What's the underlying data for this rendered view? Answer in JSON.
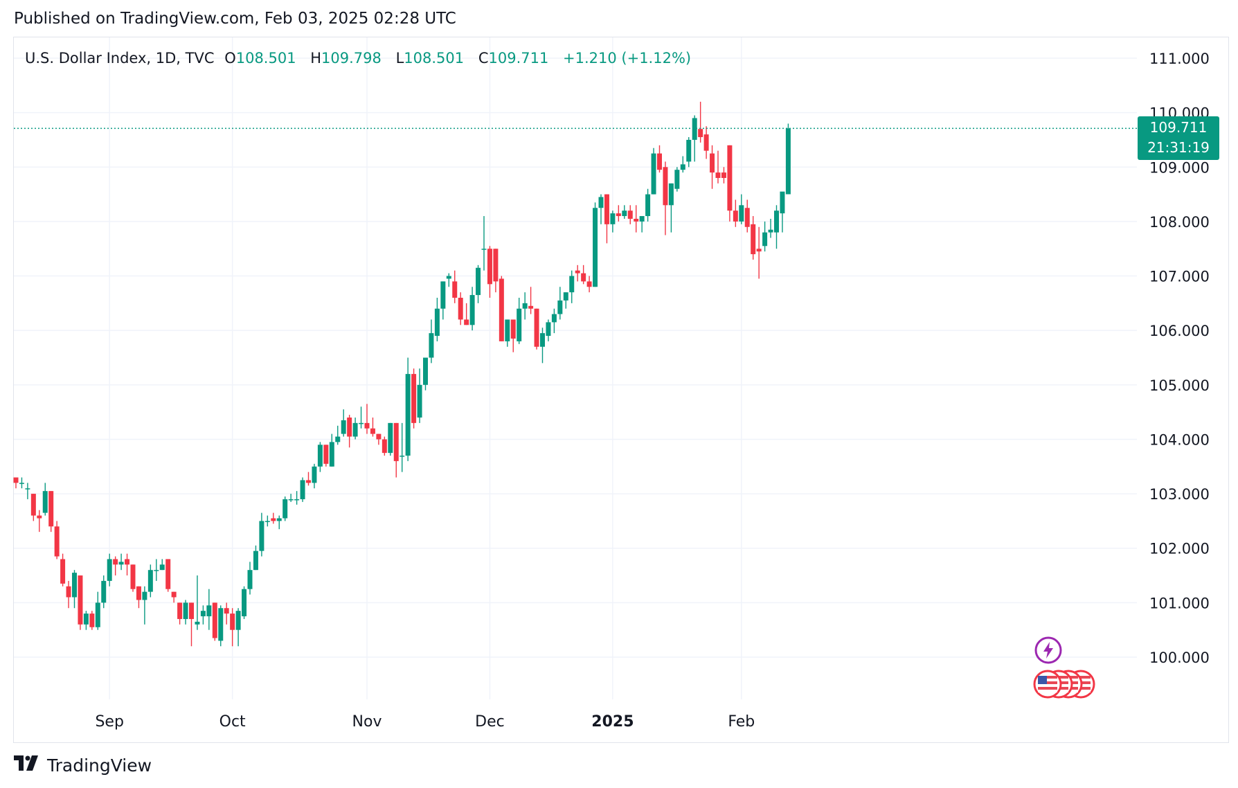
{
  "header": {
    "published": "Published on TradingView.com, Feb 03, 2025 02:28 UTC"
  },
  "legend": {
    "symbol": "U.S. Dollar Index, 1D, TVC",
    "open_label": "O",
    "open": "108.501",
    "high_label": "H",
    "high": "109.798",
    "low_label": "L",
    "low": "108.501",
    "close_label": "C",
    "close": "109.711",
    "change": "+1.210 (+1.12%)"
  },
  "price_tag": {
    "price": "109.711",
    "countdown": "21:31:19"
  },
  "footer": {
    "brand": "TradingView"
  },
  "colors": {
    "up": "#089981",
    "down": "#f23645",
    "grid": "#f0f3fa",
    "text": "#131722",
    "event": "#9c27b0"
  },
  "chart_data": {
    "type": "candlestick",
    "title": "U.S. Dollar Index, 1D, TVC",
    "ylim": [
      99.2,
      111.4
    ],
    "y_ticks": [
      "111.000",
      "110.000",
      "109.000",
      "108.000",
      "107.000",
      "106.000",
      "105.000",
      "104.000",
      "103.000",
      "102.000",
      "101.000",
      "100.000"
    ],
    "y_tick_values": [
      111,
      110,
      109,
      108,
      107,
      106,
      105,
      104,
      103,
      102,
      101,
      100
    ],
    "x_ticks": [
      {
        "label": "Sep",
        "index": 16,
        "bold": false
      },
      {
        "label": "Oct",
        "index": 37,
        "bold": false
      },
      {
        "label": "Nov",
        "index": 60,
        "bold": false
      },
      {
        "label": "Dec",
        "index": 81,
        "bold": false
      },
      {
        "label": "2025",
        "index": 102,
        "bold": true
      },
      {
        "label": "Feb",
        "index": 124,
        "bold": false
      }
    ],
    "last_price": 109.711,
    "candles": [
      [
        103.3,
        103.3,
        103.1,
        103.2
      ],
      [
        103.2,
        103.3,
        103.1,
        103.2
      ],
      [
        103.1,
        103.2,
        102.9,
        103.1
      ],
      [
        103.0,
        103.0,
        102.5,
        102.6
      ],
      [
        102.6,
        102.7,
        102.3,
        102.55
      ],
      [
        102.65,
        103.2,
        102.6,
        103.05
      ],
      [
        103.05,
        103.05,
        102.3,
        102.4
      ],
      [
        102.4,
        102.5,
        101.8,
        101.85
      ],
      [
        101.8,
        101.9,
        101.3,
        101.35
      ],
      [
        101.3,
        101.4,
        100.9,
        101.1
      ],
      [
        101.1,
        101.6,
        100.9,
        101.55
      ],
      [
        101.5,
        101.5,
        100.5,
        100.6
      ],
      [
        100.6,
        100.85,
        100.5,
        100.8
      ],
      [
        100.8,
        100.85,
        100.5,
        100.55
      ],
      [
        100.55,
        101.2,
        100.5,
        101.0
      ],
      [
        101.0,
        101.5,
        100.9,
        101.4
      ],
      [
        101.4,
        101.9,
        101.3,
        101.8
      ],
      [
        101.8,
        101.85,
        101.5,
        101.7
      ],
      [
        101.7,
        101.9,
        101.6,
        101.75
      ],
      [
        101.8,
        101.9,
        101.5,
        101.7
      ],
      [
        101.7,
        101.7,
        101.2,
        101.25
      ],
      [
        101.3,
        101.3,
        100.9,
        101.05
      ],
      [
        101.05,
        101.3,
        100.6,
        101.2
      ],
      [
        101.2,
        101.7,
        101.1,
        101.6
      ],
      [
        101.6,
        101.8,
        101.4,
        101.6
      ],
      [
        101.6,
        101.8,
        101.6,
        101.7
      ],
      [
        101.8,
        101.8,
        101.2,
        101.25
      ],
      [
        101.2,
        101.2,
        101.0,
        101.1
      ],
      [
        101.0,
        101.0,
        100.6,
        100.7
      ],
      [
        100.7,
        101.05,
        100.6,
        101.0
      ],
      [
        101.0,
        101.0,
        100.2,
        100.7
      ],
      [
        100.6,
        101.5,
        100.5,
        100.65
      ],
      [
        100.75,
        100.95,
        100.6,
        100.85
      ],
      [
        100.75,
        101.25,
        100.5,
        100.95
      ],
      [
        101.0,
        101.0,
        100.3,
        100.35
      ],
      [
        100.3,
        100.95,
        100.2,
        100.9
      ],
      [
        100.9,
        101.0,
        100.6,
        100.8
      ],
      [
        100.8,
        100.9,
        100.2,
        100.5
      ],
      [
        100.5,
        100.9,
        100.2,
        100.85
      ],
      [
        100.75,
        101.3,
        100.7,
        101.25
      ],
      [
        101.25,
        101.75,
        101.15,
        101.6
      ],
      [
        101.6,
        102.05,
        101.6,
        101.95
      ],
      [
        101.95,
        102.65,
        101.85,
        102.5
      ],
      [
        102.5,
        102.6,
        102.4,
        102.5
      ],
      [
        102.55,
        102.65,
        102.45,
        102.5
      ],
      [
        102.5,
        102.6,
        102.35,
        102.55
      ],
      [
        102.55,
        102.95,
        102.5,
        102.9
      ],
      [
        102.9,
        103.0,
        102.85,
        102.9
      ],
      [
        102.9,
        103.05,
        102.8,
        102.9
      ],
      [
        102.9,
        103.3,
        102.85,
        103.25
      ],
      [
        103.25,
        103.4,
        103.15,
        103.2
      ],
      [
        103.2,
        103.55,
        103.1,
        103.5
      ],
      [
        103.5,
        103.95,
        103.4,
        103.9
      ],
      [
        103.9,
        103.9,
        103.5,
        103.55
      ],
      [
        103.5,
        104.1,
        103.5,
        103.95
      ],
      [
        103.95,
        104.25,
        103.9,
        104.05
      ],
      [
        104.1,
        104.55,
        104.05,
        104.35
      ],
      [
        104.4,
        104.45,
        103.85,
        104.05
      ],
      [
        104.05,
        104.4,
        104.0,
        104.3
      ],
      [
        104.3,
        104.6,
        104.2,
        104.3
      ],
      [
        104.3,
        104.65,
        104.1,
        104.2
      ],
      [
        104.2,
        104.4,
        104.05,
        104.1
      ],
      [
        104.1,
        104.1,
        103.9,
        104.0
      ],
      [
        104.0,
        104.05,
        103.7,
        103.75
      ],
      [
        103.75,
        104.3,
        103.7,
        104.3
      ],
      [
        104.3,
        104.3,
        103.3,
        103.6
      ],
      [
        103.7,
        104.3,
        103.4,
        103.7
      ],
      [
        103.7,
        105.5,
        103.6,
        105.2
      ],
      [
        105.2,
        105.3,
        104.2,
        104.3
      ],
      [
        104.4,
        105.3,
        104.3,
        105.0
      ],
      [
        105.0,
        105.5,
        104.9,
        105.5
      ],
      [
        105.5,
        106.2,
        105.4,
        105.95
      ],
      [
        105.9,
        106.6,
        105.8,
        106.4
      ],
      [
        106.4,
        106.9,
        106.2,
        106.9
      ],
      [
        106.95,
        107.05,
        106.8,
        107.0
      ],
      [
        106.9,
        107.1,
        106.5,
        106.6
      ],
      [
        106.6,
        106.7,
        106.1,
        106.2
      ],
      [
        106.2,
        106.5,
        106.1,
        106.1
      ],
      [
        106.1,
        106.8,
        106.0,
        106.65
      ],
      [
        106.65,
        107.2,
        106.5,
        107.15
      ],
      [
        107.5,
        108.1,
        107.1,
        107.5
      ],
      [
        107.5,
        107.55,
        106.6,
        106.85
      ],
      [
        107.5,
        107.5,
        106.7,
        106.9
      ],
      [
        106.95,
        107.0,
        105.8,
        105.8
      ],
      [
        105.8,
        106.2,
        105.7,
        106.2
      ],
      [
        106.2,
        106.1,
        105.6,
        105.85
      ],
      [
        105.8,
        106.6,
        105.75,
        106.4
      ],
      [
        106.4,
        106.7,
        106.2,
        106.5
      ],
      [
        106.45,
        106.8,
        106.3,
        106.4
      ],
      [
        106.4,
        106.4,
        105.65,
        105.7
      ],
      [
        105.7,
        106.05,
        105.4,
        105.95
      ],
      [
        105.9,
        106.2,
        105.8,
        106.15
      ],
      [
        106.15,
        106.4,
        105.95,
        106.3
      ],
      [
        106.3,
        106.8,
        106.2,
        106.55
      ],
      [
        106.55,
        106.7,
        106.4,
        106.7
      ],
      [
        106.7,
        107.1,
        106.5,
        107.0
      ],
      [
        107.1,
        107.2,
        106.9,
        107.05
      ],
      [
        107.05,
        107.2,
        106.85,
        106.9
      ],
      [
        106.9,
        107.0,
        106.7,
        106.8
      ],
      [
        106.8,
        108.35,
        106.8,
        108.25
      ],
      [
        108.25,
        108.5,
        107.95,
        108.45
      ],
      [
        108.5,
        108.5,
        107.6,
        107.95
      ],
      [
        107.95,
        108.2,
        107.8,
        108.15
      ],
      [
        108.15,
        108.3,
        108.0,
        108.1
      ],
      [
        108.1,
        108.3,
        108.05,
        108.2
      ],
      [
        108.2,
        108.3,
        107.95,
        108.05
      ],
      [
        108.05,
        108.3,
        107.8,
        108.0
      ],
      [
        108.0,
        108.05,
        107.8,
        108.1
      ],
      [
        108.1,
        108.6,
        108.0,
        108.5
      ],
      [
        108.5,
        109.35,
        108.5,
        109.25
      ],
      [
        109.25,
        109.4,
        108.9,
        108.95
      ],
      [
        109.0,
        109.1,
        107.75,
        108.3
      ],
      [
        108.3,
        108.7,
        107.8,
        108.7
      ],
      [
        108.6,
        109.0,
        108.55,
        108.95
      ],
      [
        108.95,
        109.2,
        108.9,
        109.05
      ],
      [
        109.1,
        109.55,
        109.0,
        109.5
      ],
      [
        109.5,
        109.95,
        109.1,
        109.9
      ],
      [
        109.7,
        110.2,
        109.45,
        109.55
      ],
      [
        109.6,
        109.75,
        109.15,
        109.3
      ],
      [
        109.25,
        109.4,
        108.6,
        108.9
      ],
      [
        108.9,
        109.3,
        108.7,
        108.8
      ],
      [
        108.9,
        109.0,
        108.7,
        108.8
      ],
      [
        109.4,
        109.4,
        108.0,
        108.2
      ],
      [
        108.2,
        108.4,
        107.9,
        108.0
      ],
      [
        108.0,
        108.5,
        107.95,
        108.3
      ],
      [
        108.25,
        108.4,
        107.8,
        107.9
      ],
      [
        107.95,
        108.1,
        107.3,
        107.4
      ],
      [
        107.5,
        107.9,
        106.95,
        107.45
      ],
      [
        107.55,
        108.0,
        107.45,
        107.8
      ],
      [
        107.8,
        108.05,
        107.7,
        107.85
      ],
      [
        107.8,
        108.3,
        107.5,
        108.2
      ],
      [
        108.15,
        108.5,
        107.8,
        108.55
      ],
      [
        108.501,
        109.798,
        108.501,
        109.711
      ]
    ]
  }
}
